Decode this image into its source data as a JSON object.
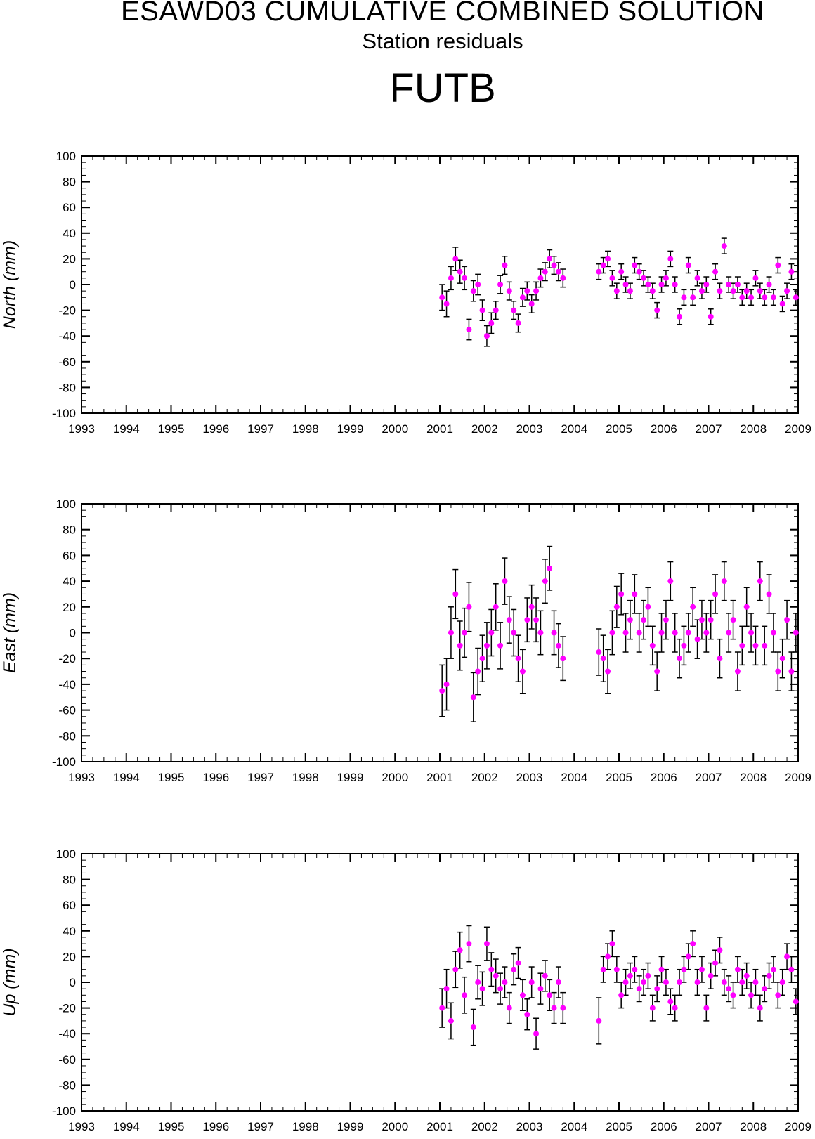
{
  "header": {
    "title": "ESAWD03 CUMULATIVE COMBINED SOLUTION",
    "subtitle": "Station residuals",
    "station": "FUTB"
  },
  "colors": {
    "point": "#ff00ff",
    "errorbar": "#000000",
    "axis": "#000000"
  },
  "chart_data": [
    {
      "type": "scatter",
      "title": "",
      "xlabel": "",
      "ylabel": "North (mm)",
      "xlim": [
        1993,
        2009
      ],
      "ylim": [
        -100,
        100
      ],
      "x_ticks": [
        "1993",
        "1994",
        "1995",
        "1996",
        "1997",
        "1998",
        "1999",
        "2000",
        "2001",
        "2002",
        "2003",
        "2004",
        "2005",
        "2006",
        "2007",
        "2008",
        "2009"
      ],
      "y_ticks": [
        "100",
        "80",
        "60",
        "40",
        "20",
        "0",
        "-20",
        "-40",
        "-60",
        "-80",
        "-100"
      ],
      "grid": false,
      "series": [
        {
          "x": [
            2001.05,
            2001.15,
            2001.25,
            2001.35,
            2001.45,
            2001.55,
            2001.65,
            2001.75,
            2001.85,
            2001.95,
            2002.05,
            2002.15,
            2002.25,
            2002.35,
            2002.45,
            2002.55,
            2002.65,
            2002.75,
            2002.85,
            2002.95,
            2003.05,
            2003.15,
            2003.25,
            2003.35,
            2003.45,
            2003.55,
            2003.65,
            2003.75,
            2004.55,
            2004.65,
            2004.75,
            2004.85,
            2004.95,
            2005.05,
            2005.15,
            2005.25,
            2005.35,
            2005.45,
            2005.55,
            2005.65,
            2005.75,
            2005.85,
            2005.95,
            2006.05,
            2006.15,
            2006.25,
            2006.35,
            2006.45,
            2006.55,
            2006.65,
            2006.75,
            2006.85,
            2006.95,
            2007.05,
            2007.15,
            2007.25,
            2007.35,
            2007.45,
            2007.55,
            2007.65,
            2007.75,
            2007.85,
            2007.95,
            2008.05,
            2008.15,
            2008.25,
            2008.35,
            2008.45,
            2008.55,
            2008.65,
            2008.75,
            2008.85,
            2008.95
          ],
          "y": [
            -10,
            -15,
            5,
            20,
            10,
            5,
            -35,
            -5,
            0,
            -20,
            -40,
            -30,
            -20,
            0,
            15,
            -5,
            -20,
            -30,
            -10,
            -5,
            -15,
            -5,
            5,
            10,
            20,
            15,
            10,
            5,
            10,
            15,
            20,
            5,
            -5,
            10,
            0,
            -5,
            15,
            10,
            5,
            0,
            -5,
            -20,
            0,
            5,
            20,
            0,
            -25,
            -10,
            15,
            -10,
            5,
            -5,
            0,
            -25,
            10,
            -5,
            30,
            0,
            -5,
            0,
            -10,
            -5,
            -10,
            5,
            -5,
            -10,
            0,
            -10,
            15,
            -15,
            -5,
            10,
            -10
          ],
          "err": [
            10,
            10,
            9,
            9,
            9,
            9,
            8,
            8,
            8,
            8,
            8,
            8,
            7,
            7,
            7,
            7,
            7,
            7,
            7,
            7,
            7,
            7,
            7,
            7,
            7,
            7,
            7,
            7,
            6,
            6,
            6,
            6,
            6,
            6,
            6,
            6,
            6,
            6,
            6,
            6,
            6,
            6,
            6,
            6,
            6,
            6,
            6,
            6,
            6,
            6,
            6,
            6,
            6,
            6,
            6,
            6,
            6,
            6,
            6,
            6,
            6,
            6,
            6,
            6,
            6,
            6,
            6,
            6,
            6,
            6,
            6,
            6,
            6
          ]
        }
      ]
    },
    {
      "type": "scatter",
      "title": "",
      "xlabel": "",
      "ylabel": "East (mm)",
      "xlim": [
        1993,
        2009
      ],
      "ylim": [
        -100,
        100
      ],
      "x_ticks": [
        "1993",
        "1994",
        "1995",
        "1996",
        "1997",
        "1998",
        "1999",
        "2000",
        "2001",
        "2002",
        "2003",
        "2004",
        "2005",
        "2006",
        "2007",
        "2008",
        "2009"
      ],
      "y_ticks": [
        "100",
        "80",
        "60",
        "40",
        "20",
        "0",
        "-20",
        "-40",
        "-60",
        "-80",
        "-100"
      ],
      "grid": false,
      "series": [
        {
          "x": [
            2001.05,
            2001.15,
            2001.25,
            2001.35,
            2001.45,
            2001.55,
            2001.65,
            2001.75,
            2001.85,
            2001.95,
            2002.05,
            2002.15,
            2002.25,
            2002.35,
            2002.45,
            2002.55,
            2002.65,
            2002.75,
            2002.85,
            2002.95,
            2003.05,
            2003.15,
            2003.25,
            2003.35,
            2003.45,
            2003.55,
            2003.65,
            2003.75,
            2004.55,
            2004.65,
            2004.75,
            2004.85,
            2004.95,
            2005.05,
            2005.15,
            2005.25,
            2005.35,
            2005.45,
            2005.55,
            2005.65,
            2005.75,
            2005.85,
            2005.95,
            2006.05,
            2006.15,
            2006.25,
            2006.35,
            2006.45,
            2006.55,
            2006.65,
            2006.75,
            2006.85,
            2006.95,
            2007.05,
            2007.15,
            2007.25,
            2007.35,
            2007.45,
            2007.55,
            2007.65,
            2007.75,
            2007.85,
            2007.95,
            2008.05,
            2008.15,
            2008.25,
            2008.35,
            2008.45,
            2008.55,
            2008.65,
            2008.75,
            2008.85,
            2008.95
          ],
          "y": [
            -45,
            -40,
            0,
            30,
            -10,
            0,
            20,
            -50,
            -30,
            -20,
            -10,
            0,
            20,
            -10,
            40,
            10,
            0,
            -20,
            -30,
            10,
            20,
            10,
            0,
            40,
            50,
            0,
            -10,
            -20,
            -15,
            -20,
            -30,
            0,
            20,
            30,
            0,
            10,
            30,
            0,
            10,
            20,
            -10,
            -30,
            0,
            10,
            40,
            0,
            -20,
            -10,
            0,
            20,
            -5,
            10,
            0,
            10,
            30,
            -20,
            40,
            0,
            10,
            -30,
            -10,
            20,
            0,
            -10,
            40,
            -10,
            30,
            0,
            -30,
            -20,
            10,
            -30,
            0
          ],
          "err": [
            20,
            20,
            20,
            19,
            19,
            19,
            19,
            19,
            18,
            18,
            18,
            18,
            18,
            18,
            18,
            18,
            18,
            18,
            17,
            17,
            17,
            17,
            17,
            17,
            17,
            17,
            17,
            17,
            18,
            18,
            17,
            17,
            16,
            16,
            15,
            15,
            15,
            15,
            15,
            15,
            15,
            15,
            15,
            15,
            15,
            15,
            15,
            15,
            15,
            15,
            15,
            15,
            15,
            15,
            15,
            15,
            15,
            15,
            15,
            15,
            15,
            15,
            15,
            15,
            15,
            15,
            15,
            15,
            15,
            15,
            15,
            15,
            15
          ]
        }
      ]
    },
    {
      "type": "scatter",
      "title": "",
      "xlabel": "",
      "ylabel": "Up (mm)",
      "xlim": [
        1993,
        2009
      ],
      "ylim": [
        -100,
        100
      ],
      "x_ticks": [
        "1993",
        "1994",
        "1995",
        "1996",
        "1997",
        "1998",
        "1999",
        "2000",
        "2001",
        "2002",
        "2003",
        "2004",
        "2005",
        "2006",
        "2007",
        "2008",
        "2009"
      ],
      "y_ticks": [
        "100",
        "80",
        "60",
        "40",
        "20",
        "0",
        "-20",
        "-40",
        "-60",
        "-80",
        "-100"
      ],
      "grid": false,
      "series": [
        {
          "x": [
            2001.05,
            2001.15,
            2001.25,
            2001.35,
            2001.45,
            2001.55,
            2001.65,
            2001.75,
            2001.85,
            2001.95,
            2002.05,
            2002.15,
            2002.25,
            2002.35,
            2002.45,
            2002.55,
            2002.65,
            2002.75,
            2002.85,
            2002.95,
            2003.05,
            2003.15,
            2003.25,
            2003.35,
            2003.45,
            2003.55,
            2003.65,
            2003.75,
            2004.55,
            2004.65,
            2004.75,
            2004.85,
            2004.95,
            2005.05,
            2005.15,
            2005.25,
            2005.35,
            2005.45,
            2005.55,
            2005.65,
            2005.75,
            2005.85,
            2005.95,
            2006.05,
            2006.15,
            2006.25,
            2006.35,
            2006.45,
            2006.55,
            2006.65,
            2006.75,
            2006.85,
            2006.95,
            2007.05,
            2007.15,
            2007.25,
            2007.35,
            2007.45,
            2007.55,
            2007.65,
            2007.75,
            2007.85,
            2007.95,
            2008.05,
            2008.15,
            2008.25,
            2008.35,
            2008.45,
            2008.55,
            2008.65,
            2008.75,
            2008.85,
            2008.95
          ],
          "y": [
            -20,
            -5,
            -30,
            10,
            25,
            -10,
            30,
            -35,
            0,
            -5,
            30,
            10,
            5,
            -5,
            0,
            -20,
            10,
            15,
            -10,
            -25,
            0,
            -40,
            -5,
            5,
            -10,
            -20,
            0,
            -20,
            -30,
            10,
            20,
            30,
            10,
            -10,
            0,
            5,
            10,
            -5,
            0,
            5,
            -20,
            -5,
            10,
            0,
            -15,
            -20,
            0,
            10,
            20,
            30,
            0,
            10,
            -20,
            5,
            15,
            25,
            0,
            -5,
            -10,
            10,
            0,
            5,
            -10,
            0,
            -20,
            -5,
            5,
            10,
            -10,
            0,
            20,
            10,
            -15
          ],
          "err": [
            15,
            15,
            14,
            14,
            14,
            14,
            14,
            14,
            13,
            13,
            13,
            13,
            13,
            12,
            12,
            12,
            12,
            12,
            12,
            12,
            12,
            12,
            12,
            12,
            12,
            12,
            12,
            12,
            18,
            10,
            10,
            10,
            10,
            10,
            10,
            10,
            10,
            10,
            10,
            10,
            10,
            10,
            10,
            10,
            10,
            10,
            10,
            10,
            10,
            10,
            10,
            10,
            10,
            10,
            10,
            10,
            10,
            10,
            10,
            10,
            10,
            10,
            10,
            10,
            10,
            10,
            10,
            10,
            10,
            10,
            10,
            10,
            10
          ]
        }
      ]
    }
  ]
}
